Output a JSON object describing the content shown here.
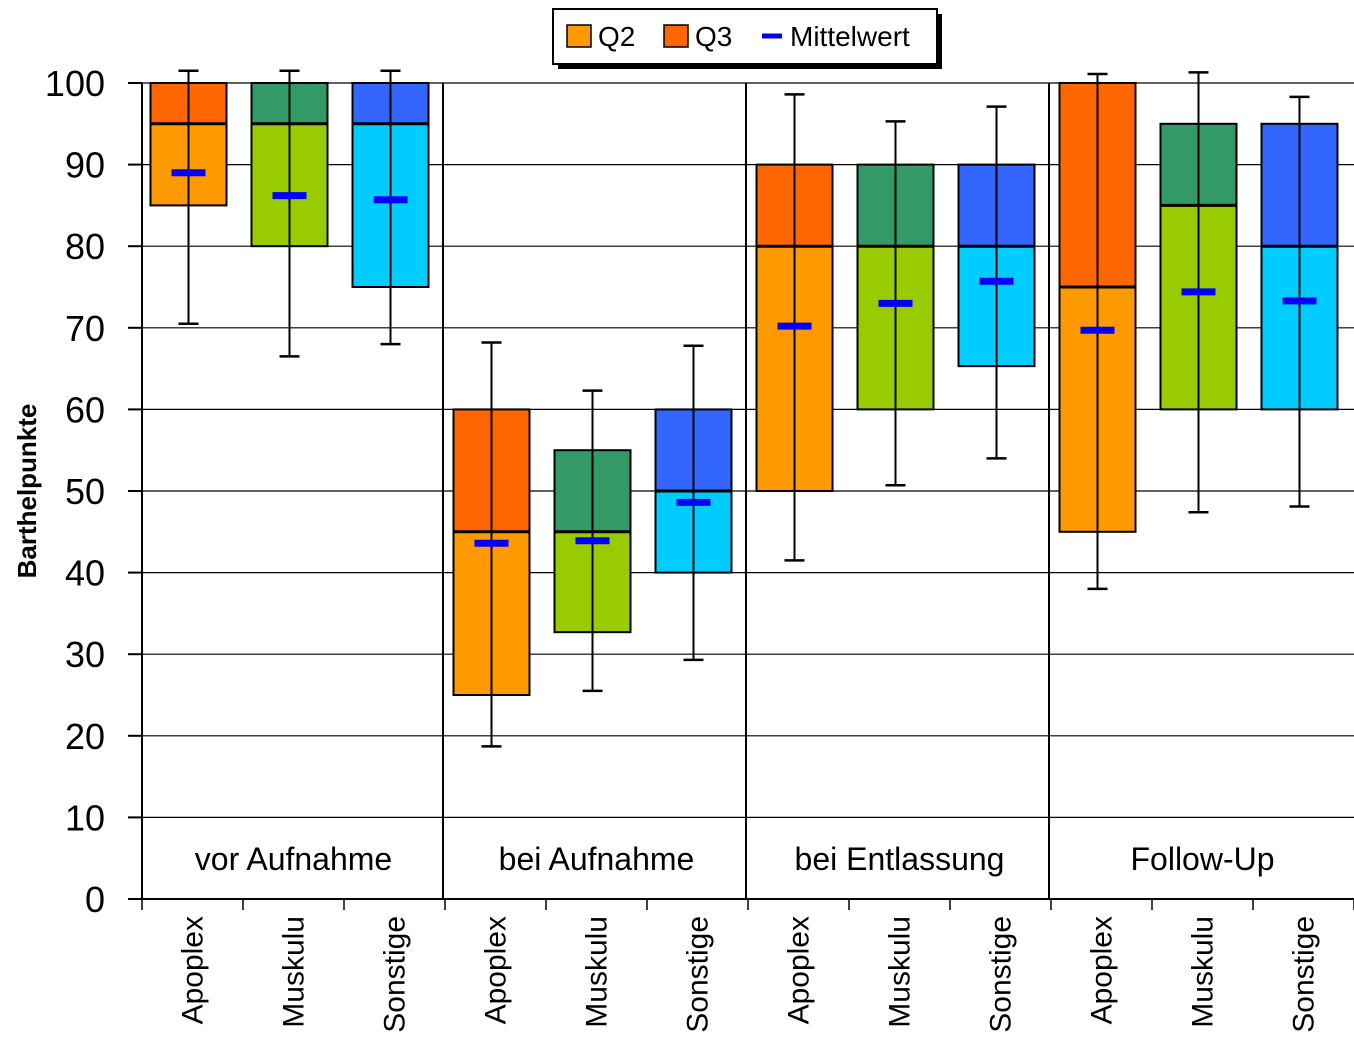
{
  "chart_data": {
    "type": "box",
    "ylabel": "Barthelpunkte",
    "ylim": [
      0,
      100
    ],
    "yticks": [
      0,
      10,
      20,
      30,
      40,
      50,
      60,
      70,
      80,
      90,
      100
    ],
    "grid": true,
    "legend": {
      "placement": "top-center",
      "entries": [
        {
          "label": "Q2",
          "color": "#ff9900"
        },
        {
          "label": "Q3",
          "color": "#ff6600"
        },
        {
          "label": "Mittelwert",
          "color": "#0000ff"
        }
      ]
    },
    "groups": [
      {
        "label": "vor Aufnahme",
        "boxes": [
          {
            "category": "Apoplex",
            "q1": 85,
            "median": 95,
            "q3": 100,
            "mean": 89,
            "whisker_low": 70.5,
            "whisker_high": 101.5,
            "q2_color": "#ff9900",
            "q3_color": "#ff6600"
          },
          {
            "category": "Muskulu",
            "q1": 80,
            "median": 95,
            "q3": 100,
            "mean": 86.2,
            "whisker_low": 66.5,
            "whisker_high": 101.5,
            "q2_color": "#99cc00",
            "q3_color": "#339966"
          },
          {
            "category": "Sonstige",
            "q1": 75,
            "median": 95,
            "q3": 100,
            "mean": 85.7,
            "whisker_low": 68,
            "whisker_high": 101.5,
            "q2_color": "#00ccff",
            "q3_color": "#3366ff"
          }
        ]
      },
      {
        "label": "bei Aufnahme",
        "boxes": [
          {
            "category": "Apoplex",
            "q1": 25,
            "median": 45,
            "q3": 60,
            "mean": 43.6,
            "whisker_low": 18.7,
            "whisker_high": 68.2,
            "q2_color": "#ff9900",
            "q3_color": "#ff6600"
          },
          {
            "category": "Muskulu",
            "q1": 32.7,
            "median": 45,
            "q3": 55,
            "mean": 43.9,
            "whisker_low": 25.5,
            "whisker_high": 62.3,
            "q2_color": "#99cc00",
            "q3_color": "#339966"
          },
          {
            "category": "Sonstige",
            "q1": 40,
            "median": 50,
            "q3": 60,
            "mean": 48.6,
            "whisker_low": 29.3,
            "whisker_high": 67.8,
            "q2_color": "#00ccff",
            "q3_color": "#3366ff"
          }
        ]
      },
      {
        "label": "bei Entlassung",
        "boxes": [
          {
            "category": "Apoplex",
            "q1": 50,
            "median": 80,
            "q3": 90,
            "mean": 70.2,
            "whisker_low": 41.5,
            "whisker_high": 98.6,
            "q2_color": "#ff9900",
            "q3_color": "#ff6600"
          },
          {
            "category": "Muskulu",
            "q1": 60,
            "median": 80,
            "q3": 90,
            "mean": 73,
            "whisker_low": 50.7,
            "whisker_high": 95.3,
            "q2_color": "#99cc00",
            "q3_color": "#339966"
          },
          {
            "category": "Sonstige",
            "q1": 65.3,
            "median": 80,
            "q3": 90,
            "mean": 75.7,
            "whisker_low": 54,
            "whisker_high": 97.1,
            "q2_color": "#00ccff",
            "q3_color": "#3366ff"
          }
        ]
      },
      {
        "label": "Follow-Up",
        "boxes": [
          {
            "category": "Apoplex",
            "q1": 45,
            "median": 75,
            "q3": 100,
            "mean": 69.7,
            "whisker_low": 38,
            "whisker_high": 101.1,
            "q2_color": "#ff9900",
            "q3_color": "#ff6600"
          },
          {
            "category": "Muskulu",
            "q1": 60,
            "median": 85,
            "q3": 95,
            "mean": 74.4,
            "whisker_low": 47.4,
            "whisker_high": 101.3,
            "q2_color": "#99cc00",
            "q3_color": "#339966"
          },
          {
            "category": "Sonstige",
            "q1": 60,
            "median": 80,
            "q3": 95,
            "mean": 73.3,
            "whisker_low": 48.1,
            "whisker_high": 98.3,
            "q2_color": "#00ccff",
            "q3_color": "#3366ff"
          }
        ]
      }
    ]
  }
}
